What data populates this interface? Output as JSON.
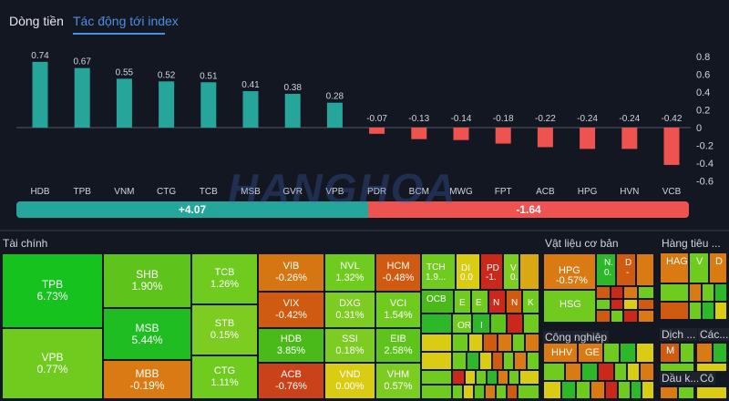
{
  "tabs": {
    "cash_flow": "Dòng tiền",
    "index_impact": "Tác động tới index"
  },
  "colors": {
    "positive": "#26a69a",
    "negative": "#ef5350"
  },
  "chart_data": {
    "type": "bar",
    "title": "Tác động tới index",
    "categories": [
      "HDB",
      "TPB",
      "VNM",
      "CTG",
      "TCB",
      "MSB",
      "GVR",
      "VPB",
      "PDR",
      "BCM",
      "MWG",
      "FPT",
      "ACB",
      "HPG",
      "HVN",
      "VCB"
    ],
    "values": [
      0.74,
      0.67,
      0.55,
      0.52,
      0.51,
      0.41,
      0.38,
      0.28,
      -0.07,
      -0.13,
      -0.14,
      -0.18,
      -0.22,
      -0.24,
      -0.24,
      -0.42
    ],
    "value_labels": [
      "0.74",
      "0.67",
      "0.55",
      "0.52",
      "0.51",
      "0.41",
      "0.38",
      "0.28",
      "-0.07",
      "-0.13",
      "-0.14",
      "-0.18",
      "-0.22",
      "-0.24",
      "-0.24",
      "-0.42"
    ],
    "yticks": [
      "0.8",
      "0.6",
      "0.4",
      "0.2",
      "0",
      "-0.2",
      "-0.4",
      "-0.6"
    ],
    "ylim": [
      -0.6,
      0.8
    ],
    "xlabel": "",
    "ylabel": ""
  },
  "totals": {
    "positive": "+4.07",
    "negative": "-1.64"
  },
  "watermark": "HANGHOA",
  "treemap": {
    "sectors": {
      "finance": "Tài chính",
      "materials": "Vật liệu cơ bản",
      "consumer": "Hàng tiêu ...",
      "industrial": "Công nghiệp",
      "services": "Dịch ...",
      "other": "Các...",
      "oil": "Dầu k...",
      "utilities": "Cô"
    },
    "tiles": [
      {
        "ticker": "TPB",
        "pct": "6.73%",
        "color": "#16c21d"
      },
      {
        "ticker": "VPB",
        "pct": "0.77%",
        "color": "#6fcc1e"
      },
      {
        "ticker": "SHB",
        "pct": "1.90%",
        "color": "#5ec41b"
      },
      {
        "ticker": "MSB",
        "pct": "5.44%",
        "color": "#20bd22"
      },
      {
        "ticker": "MBB",
        "pct": "-0.19%",
        "color": "#d97a12"
      },
      {
        "ticker": "TCB",
        "pct": "1.26%",
        "color": "#6fcc1e"
      },
      {
        "ticker": "STB",
        "pct": "0.15%",
        "color": "#7ccc22"
      },
      {
        "ticker": "CTG",
        "pct": "1.11%",
        "color": "#6fcc1e"
      },
      {
        "ticker": "VIB",
        "pct": "-0.26%",
        "color": "#d57612"
      },
      {
        "ticker": "VIX",
        "pct": "-0.42%",
        "color": "#cf5a10"
      },
      {
        "ticker": "HDB",
        "pct": "3.85%",
        "color": "#4aba1b"
      },
      {
        "ticker": "ACB",
        "pct": "-0.76%",
        "color": "#c9421a"
      },
      {
        "ticker": "NVL",
        "pct": "1.32%",
        "color": "#6fcc1e"
      },
      {
        "ticker": "DXG",
        "pct": "0.31%",
        "color": "#7ccc22"
      },
      {
        "ticker": "SSI",
        "pct": "0.18%",
        "color": "#7ccc22"
      },
      {
        "ticker": "VND",
        "pct": "0.00%",
        "color": "#d9cc12"
      },
      {
        "ticker": "HCM",
        "pct": "-0.48%",
        "color": "#cf5a10"
      },
      {
        "ticker": "VCI",
        "pct": "1.54%",
        "color": "#6fcc1e"
      },
      {
        "ticker": "EIB",
        "pct": "2.58%",
        "color": "#5ec41b"
      },
      {
        "ticker": "VHM",
        "pct": "0.57%",
        "color": "#7ccc22"
      }
    ],
    "small_labels": {
      "tch": "TCH",
      "tch_val": "1.9...",
      "di": "DI",
      "di_val": "0.0",
      "pd": "PD",
      "pd_val": "-1.",
      "v": "V",
      "v_val": "0.",
      "ocb": "OCB",
      "e1": "E",
      "e2": "E",
      "n1": "N",
      "k": "K",
      "or": "OR",
      "i": "I",
      "hpg": "HPG",
      "hpg_val": "-0.57%",
      "n2": "N.",
      "n2_val": "0.",
      "d1": "D",
      "d1_val": "-",
      "hsg": "HSG",
      "hag": "HAG",
      "v2": "V",
      "d2": "D",
      "hhv": "HHV",
      "ge": "GE",
      "m": "M"
    }
  }
}
